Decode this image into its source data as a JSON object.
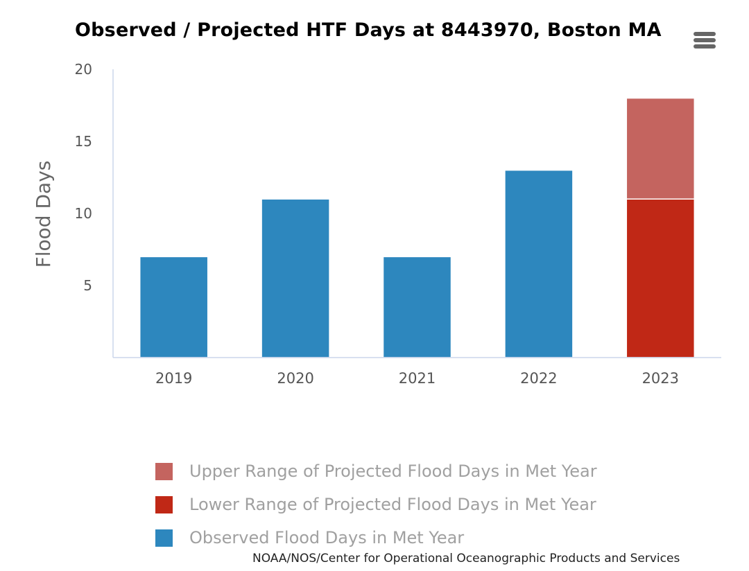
{
  "chart_data": {
    "type": "bar",
    "stacked": true,
    "title": "Observed / Projected HTF Days at 8443970, Boston MA",
    "xlabel": "",
    "ylabel": "Flood Days",
    "categories": [
      "2019",
      "2020",
      "2021",
      "2022",
      "2023"
    ],
    "ylim": [
      0,
      20
    ],
    "yticks": [
      5,
      10,
      15,
      20
    ],
    "grid": false,
    "legend_position": "bottom",
    "series": [
      {
        "name": "Upper Range of Projected Flood Days in Met Year",
        "color": "#c4645f",
        "values": [
          null,
          null,
          null,
          null,
          7
        ]
      },
      {
        "name": "Lower Range of Projected Flood Days in Met Year",
        "color": "#c02816",
        "values": [
          null,
          null,
          null,
          null,
          11
        ]
      },
      {
        "name": "Observed Flood Days in Met Year",
        "color": "#2d87be",
        "values": [
          7,
          11,
          7,
          13,
          null
        ]
      }
    ],
    "credits": "NOAA/NOS/Center for Operational Oceanographic Products and Services"
  },
  "menu": {
    "icon": "hamburger-menu-icon"
  }
}
